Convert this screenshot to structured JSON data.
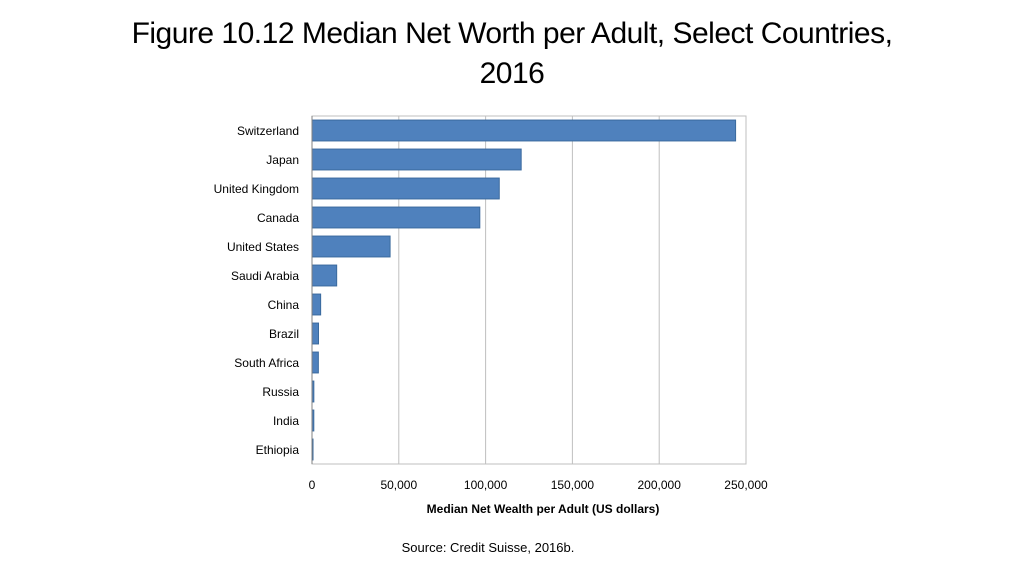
{
  "slide": {
    "title": "Figure 10.12 Median Net Worth per Adult, Select Countries, 2016",
    "source": "Source: Credit Suisse, 2016b."
  },
  "chart_data": {
    "type": "bar",
    "orientation": "horizontal",
    "categories": [
      "Switzerland",
      "Japan",
      "United Kingdom",
      "Canada",
      "United States",
      "Saudi Arabia",
      "China",
      "Brazil",
      "South Africa",
      "Russia",
      "India",
      "Ethiopia"
    ],
    "values": [
      244002,
      120493,
      107865,
      96664,
      44977,
      14212,
      4978,
      3749,
      3661,
      1058,
      1040,
      339
    ],
    "xlabel": "Median Net Wealth per Adult (US dollars)",
    "ylabel": "",
    "xlim": [
      0,
      250000
    ],
    "x_ticks": [
      0,
      50000,
      100000,
      150000,
      200000,
      250000
    ],
    "x_tick_labels": [
      "0",
      "50,000",
      "100,000",
      "150,000",
      "200,000",
      "250,000"
    ],
    "grid": "vertical",
    "bar_color": "#4f81bd",
    "bar_edge_color": "#3a6a9e",
    "grid_color": "#bfbfbf"
  }
}
